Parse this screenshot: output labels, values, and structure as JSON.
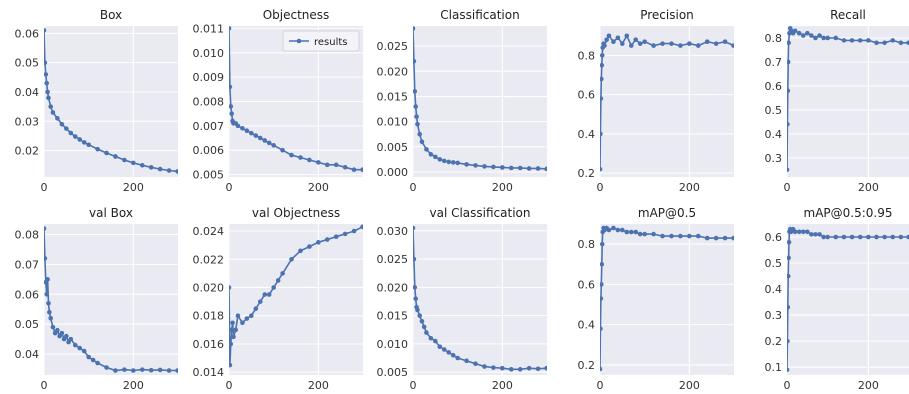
{
  "colors": {
    "series": "#4c72b0",
    "panel_bg": "#eaeaf2",
    "grid": "#ffffff"
  },
  "legend": {
    "label": "results"
  },
  "chart_data": [
    {
      "type": "line",
      "title": "Box",
      "xlim": [
        0,
        300
      ],
      "ylim": [
        0.011,
        0.0625
      ],
      "xticks": [
        "0",
        "200"
      ],
      "yticks": [
        "0.02",
        "0.03",
        "0.04",
        "0.05",
        "0.06"
      ],
      "x": [
        0,
        2,
        4,
        6,
        8,
        10,
        15,
        20,
        30,
        40,
        50,
        60,
        70,
        80,
        90,
        100,
        120,
        140,
        160,
        180,
        200,
        220,
        240,
        260,
        280,
        299
      ],
      "y": [
        0.061,
        0.05,
        0.046,
        0.043,
        0.04,
        0.038,
        0.035,
        0.033,
        0.031,
        0.029,
        0.0275,
        0.026,
        0.0248,
        0.0238,
        0.0228,
        0.022,
        0.0205,
        0.0192,
        0.018,
        0.0168,
        0.0158,
        0.015,
        0.0143,
        0.0137,
        0.0132,
        0.0129
      ]
    },
    {
      "type": "line",
      "title": "Objectness",
      "xlim": [
        0,
        300
      ],
      "ylim": [
        0.0049,
        0.0111
      ],
      "xticks": [
        "0",
        "200"
      ],
      "yticks": [
        "0.005",
        "0.006",
        "0.007",
        "0.008",
        "0.009",
        "0.010",
        "0.011"
      ],
      "legend": "top-right",
      "x": [
        0,
        2,
        4,
        6,
        8,
        10,
        15,
        20,
        30,
        40,
        50,
        60,
        70,
        80,
        90,
        100,
        120,
        140,
        160,
        180,
        200,
        220,
        240,
        260,
        280,
        299
      ],
      "y": [
        0.011,
        0.0086,
        0.0078,
        0.0075,
        0.0072,
        0.0071,
        0.0071,
        0.007,
        0.0069,
        0.0068,
        0.0067,
        0.0066,
        0.0065,
        0.0064,
        0.0063,
        0.0062,
        0.006,
        0.0058,
        0.0057,
        0.0056,
        0.0055,
        0.0054,
        0.0054,
        0.0053,
        0.0052,
        0.0052
      ]
    },
    {
      "type": "line",
      "title": "Classification",
      "xlim": [
        0,
        300
      ],
      "ylim": [
        -0.001,
        0.029
      ],
      "xticks": [
        "0",
        "200"
      ],
      "yticks": [
        "0.000",
        "0.005",
        "0.010",
        "0.015",
        "0.020",
        "0.025"
      ],
      "x": [
        0,
        2,
        4,
        6,
        8,
        10,
        15,
        20,
        30,
        40,
        50,
        60,
        70,
        80,
        90,
        100,
        120,
        140,
        160,
        180,
        200,
        220,
        240,
        260,
        280,
        299
      ],
      "y": [
        0.0285,
        0.022,
        0.016,
        0.013,
        0.011,
        0.0095,
        0.0075,
        0.006,
        0.0045,
        0.0035,
        0.003,
        0.0025,
        0.0022,
        0.002,
        0.0019,
        0.0018,
        0.0015,
        0.0013,
        0.0011,
        0.001,
        0.0009,
        0.0008,
        0.0008,
        0.0007,
        0.0007,
        0.0006
      ]
    },
    {
      "type": "line",
      "title": "Precision",
      "xlim": [
        0,
        300
      ],
      "ylim": [
        0.18,
        0.95
      ],
      "xticks": [
        "0",
        "200"
      ],
      "yticks": [
        "0.2",
        "0.4",
        "0.6",
        "0.8"
      ],
      "x": [
        0,
        1,
        2,
        3,
        4,
        5,
        6,
        8,
        10,
        15,
        20,
        30,
        40,
        50,
        60,
        70,
        80,
        90,
        100,
        120,
        140,
        160,
        180,
        200,
        220,
        240,
        260,
        280,
        299
      ],
      "y": [
        0.22,
        0.4,
        0.58,
        0.68,
        0.75,
        0.8,
        0.84,
        0.86,
        0.85,
        0.88,
        0.9,
        0.87,
        0.89,
        0.86,
        0.9,
        0.85,
        0.88,
        0.86,
        0.87,
        0.85,
        0.86,
        0.86,
        0.85,
        0.86,
        0.85,
        0.87,
        0.86,
        0.87,
        0.85
      ]
    },
    {
      "type": "line",
      "title": "Recall",
      "xlim": [
        0,
        300
      ],
      "ylim": [
        0.22,
        0.85
      ],
      "xticks": [
        "0",
        "200"
      ],
      "yticks": [
        "0.3",
        "0.4",
        "0.5",
        "0.6",
        "0.7",
        "0.8"
      ],
      "x": [
        0,
        1,
        2,
        3,
        4,
        6,
        8,
        10,
        15,
        20,
        30,
        40,
        50,
        60,
        70,
        80,
        90,
        100,
        120,
        140,
        160,
        180,
        200,
        220,
        240,
        260,
        280,
        299
      ],
      "y": [
        0.25,
        0.44,
        0.58,
        0.7,
        0.78,
        0.82,
        0.84,
        0.83,
        0.82,
        0.83,
        0.82,
        0.81,
        0.82,
        0.81,
        0.8,
        0.81,
        0.8,
        0.8,
        0.8,
        0.79,
        0.79,
        0.79,
        0.79,
        0.78,
        0.78,
        0.79,
        0.78,
        0.78
      ]
    },
    {
      "type": "line",
      "title": "val Box",
      "xlim": [
        0,
        300
      ],
      "ylim": [
        0.033,
        0.0835
      ],
      "xticks": [
        "0",
        "200"
      ],
      "yticks": [
        "0.04",
        "0.05",
        "0.06",
        "0.07",
        "0.08"
      ],
      "x": [
        0,
        2,
        4,
        6,
        8,
        10,
        12,
        15,
        20,
        25,
        30,
        35,
        40,
        45,
        50,
        55,
        60,
        70,
        80,
        90,
        100,
        110,
        120,
        140,
        160,
        180,
        200,
        220,
        240,
        260,
        280,
        299
      ],
      "y": [
        0.082,
        0.072,
        0.064,
        0.06,
        0.065,
        0.057,
        0.054,
        0.052,
        0.049,
        0.047,
        0.048,
        0.046,
        0.047,
        0.045,
        0.046,
        0.044,
        0.045,
        0.043,
        0.042,
        0.041,
        0.039,
        0.038,
        0.037,
        0.0355,
        0.0345,
        0.0348,
        0.0345,
        0.0348,
        0.0346,
        0.0347,
        0.0345,
        0.0345
      ]
    },
    {
      "type": "line",
      "title": "val Objectness",
      "xlim": [
        0,
        300
      ],
      "ylim": [
        0.0138,
        0.0245
      ],
      "xticks": [
        "0",
        "200"
      ],
      "yticks": [
        "0.014",
        "0.016",
        "0.018",
        "0.020",
        "0.022",
        "0.024"
      ],
      "x": [
        0,
        2,
        4,
        6,
        8,
        10,
        15,
        20,
        30,
        40,
        50,
        60,
        70,
        80,
        90,
        100,
        110,
        120,
        140,
        160,
        180,
        200,
        220,
        240,
        260,
        280,
        299
      ],
      "y": [
        0.02,
        0.0145,
        0.016,
        0.017,
        0.0175,
        0.0165,
        0.017,
        0.018,
        0.0175,
        0.0178,
        0.018,
        0.0185,
        0.019,
        0.0195,
        0.0195,
        0.02,
        0.0205,
        0.021,
        0.022,
        0.0226,
        0.0229,
        0.0232,
        0.0234,
        0.0236,
        0.0238,
        0.024,
        0.0243
      ]
    },
    {
      "type": "line",
      "title": "val Classification",
      "xlim": [
        0,
        300
      ],
      "ylim": [
        0.0045,
        0.0312
      ],
      "xticks": [
        "0",
        "200"
      ],
      "yticks": [
        "0.005",
        "0.010",
        "0.015",
        "0.020",
        "0.025",
        "0.030"
      ],
      "x": [
        0,
        2,
        4,
        6,
        8,
        10,
        15,
        20,
        25,
        30,
        40,
        50,
        60,
        70,
        80,
        90,
        100,
        120,
        140,
        160,
        180,
        200,
        220,
        240,
        260,
        280,
        299
      ],
      "y": [
        0.0305,
        0.025,
        0.02,
        0.018,
        0.0165,
        0.016,
        0.015,
        0.014,
        0.013,
        0.012,
        0.011,
        0.0105,
        0.0095,
        0.009,
        0.0085,
        0.008,
        0.0075,
        0.007,
        0.0065,
        0.006,
        0.0058,
        0.0057,
        0.0055,
        0.0055,
        0.0057,
        0.0056,
        0.0057
      ]
    },
    {
      "type": "line",
      "title": "mAP@0.5",
      "xlim": [
        0,
        300
      ],
      "ylim": [
        0.15,
        0.9
      ],
      "xticks": [
        "0",
        "200"
      ],
      "yticks": [
        "0.2",
        "0.4",
        "0.6",
        "0.8"
      ],
      "x": [
        0,
        1,
        2,
        3,
        4,
        5,
        6,
        8,
        10,
        15,
        20,
        30,
        40,
        50,
        60,
        70,
        80,
        90,
        100,
        120,
        140,
        160,
        180,
        200,
        220,
        240,
        260,
        280,
        299
      ],
      "y": [
        0.18,
        0.38,
        0.53,
        0.6,
        0.7,
        0.8,
        0.86,
        0.88,
        0.87,
        0.88,
        0.87,
        0.88,
        0.87,
        0.87,
        0.86,
        0.86,
        0.86,
        0.85,
        0.85,
        0.85,
        0.84,
        0.84,
        0.84,
        0.84,
        0.84,
        0.83,
        0.83,
        0.83,
        0.83
      ]
    },
    {
      "type": "line",
      "title": "mAP@0.5:0.95",
      "xlim": [
        0,
        300
      ],
      "ylim": [
        0.07,
        0.65
      ],
      "xticks": [
        "0",
        "200"
      ],
      "yticks": [
        "0.1",
        "0.2",
        "0.3",
        "0.4",
        "0.5",
        "0.6"
      ],
      "x": [
        0,
        1,
        2,
        3,
        4,
        5,
        6,
        8,
        10,
        15,
        20,
        30,
        40,
        50,
        60,
        70,
        80,
        90,
        100,
        120,
        140,
        160,
        180,
        200,
        220,
        240,
        260,
        280,
        299
      ],
      "y": [
        0.09,
        0.2,
        0.33,
        0.45,
        0.52,
        0.58,
        0.62,
        0.63,
        0.62,
        0.63,
        0.62,
        0.62,
        0.62,
        0.62,
        0.61,
        0.61,
        0.61,
        0.6,
        0.6,
        0.6,
        0.6,
        0.6,
        0.6,
        0.6,
        0.6,
        0.6,
        0.6,
        0.6,
        0.6
      ]
    }
  ]
}
